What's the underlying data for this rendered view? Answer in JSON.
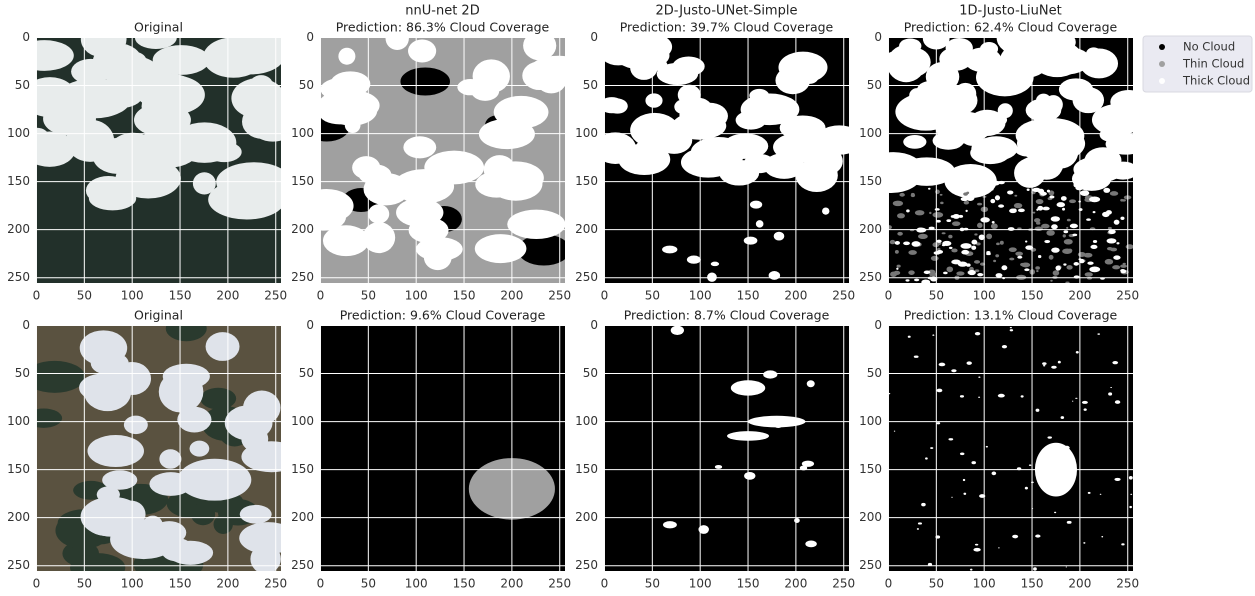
{
  "chart_data": [
    {
      "type": "image",
      "title": "Original",
      "xlim": [
        -0.5,
        255.5
      ],
      "ylim": [
        255.5,
        -0.5
      ],
      "xticks": [
        0,
        50,
        100,
        150,
        200,
        250
      ],
      "yticks": [
        0,
        50,
        100,
        150,
        200,
        250
      ],
      "grid": true
    },
    {
      "type": "image",
      "title": "nnU-net 2D",
      "subtitle": "Prediction: 86.3% Cloud Coverage",
      "xlim": [
        -0.5,
        255.5
      ],
      "ylim": [
        255.5,
        -0.5
      ],
      "xticks": [
        0,
        50,
        100,
        150,
        200,
        250
      ],
      "yticks": [
        0,
        50,
        100,
        150,
        200,
        250
      ],
      "grid": true
    },
    {
      "type": "image",
      "title": "2D-Justo-UNet-Simple",
      "subtitle": "Prediction: 39.7% Cloud Coverage",
      "xlim": [
        -0.5,
        255.5
      ],
      "ylim": [
        255.5,
        -0.5
      ],
      "xticks": [
        0,
        50,
        100,
        150,
        200,
        250
      ],
      "yticks": [
        0,
        50,
        100,
        150,
        200,
        250
      ],
      "grid": true
    },
    {
      "type": "image",
      "title": "1D-Justo-LiuNet",
      "subtitle": "Prediction: 62.4% Cloud Coverage",
      "xlim": [
        -0.5,
        255.5
      ],
      "ylim": [
        255.5,
        -0.5
      ],
      "xticks": [
        0,
        50,
        100,
        150,
        200,
        250
      ],
      "yticks": [
        0,
        50,
        100,
        150,
        200,
        250
      ],
      "grid": true
    },
    {
      "type": "image",
      "title": "Original",
      "xlim": [
        -0.5,
        255.5
      ],
      "ylim": [
        255.5,
        -0.5
      ],
      "xticks": [
        0,
        50,
        100,
        150,
        200,
        250
      ],
      "yticks": [
        0,
        50,
        100,
        150,
        200,
        250
      ],
      "grid": true
    },
    {
      "type": "image",
      "title": "Prediction: 9.6% Cloud Coverage",
      "xlim": [
        -0.5,
        255.5
      ],
      "ylim": [
        255.5,
        -0.5
      ],
      "xticks": [
        0,
        50,
        100,
        150,
        200,
        250
      ],
      "yticks": [
        0,
        50,
        100,
        150,
        200,
        250
      ],
      "grid": true
    },
    {
      "type": "image",
      "title": "Prediction: 8.7% Cloud Coverage",
      "xlim": [
        -0.5,
        255.5
      ],
      "ylim": [
        255.5,
        -0.5
      ],
      "xticks": [
        0,
        50,
        100,
        150,
        200,
        250
      ],
      "yticks": [
        0,
        50,
        100,
        150,
        200,
        250
      ],
      "grid": true
    },
    {
      "type": "image",
      "title": "Prediction: 13.1% Cloud Coverage",
      "xlim": [
        -0.5,
        255.5
      ],
      "ylim": [
        255.5,
        -0.5
      ],
      "xticks": [
        0,
        50,
        100,
        150,
        200,
        250
      ],
      "yticks": [
        0,
        50,
        100,
        150,
        200,
        250
      ],
      "grid": true
    }
  ],
  "legend": [
    {
      "name": "No Cloud",
      "color": "#000000"
    },
    {
      "name": "Thin Cloud",
      "color": "#a0a0a0"
    },
    {
      "name": "Thick Cloud",
      "color": "#ffffff"
    }
  ]
}
